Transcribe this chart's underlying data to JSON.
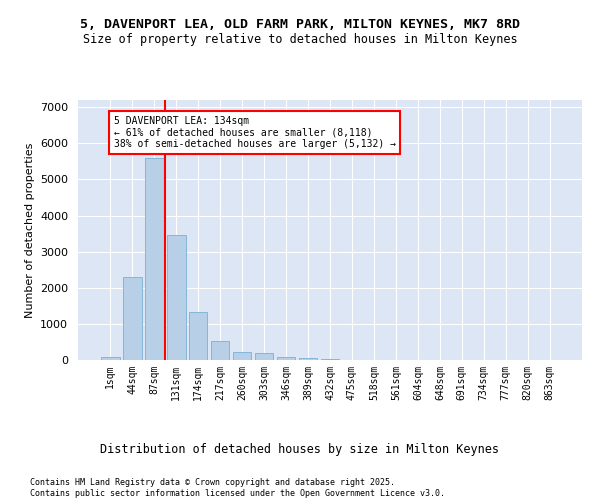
{
  "title_line1": "5, DAVENPORT LEA, OLD FARM PARK, MILTON KEYNES, MK7 8RD",
  "title_line2": "Size of property relative to detached houses in Milton Keynes",
  "xlabel": "Distribution of detached houses by size in Milton Keynes",
  "ylabel": "Number of detached properties",
  "bar_labels": [
    "1sqm",
    "44sqm",
    "87sqm",
    "131sqm",
    "174sqm",
    "217sqm",
    "260sqm",
    "303sqm",
    "346sqm",
    "389sqm",
    "432sqm",
    "475sqm",
    "518sqm",
    "561sqm",
    "604sqm",
    "648sqm",
    "691sqm",
    "734sqm",
    "777sqm",
    "820sqm",
    "863sqm"
  ],
  "bar_values": [
    80,
    2300,
    5600,
    3450,
    1320,
    530,
    220,
    185,
    95,
    65,
    35,
    10,
    5,
    3,
    2,
    1,
    1,
    0,
    0,
    0,
    0
  ],
  "bar_color": "#b8cfe8",
  "bar_edge_color": "#7aafd4",
  "vline_color": "red",
  "annotation_title": "5 DAVENPORT LEA: 134sqm",
  "annotation_line1": "← 61% of detached houses are smaller (8,118)",
  "annotation_line2": "38% of semi-detached houses are larger (5,132) →",
  "ylim": [
    0,
    7200
  ],
  "yticks": [
    0,
    1000,
    2000,
    3000,
    4000,
    5000,
    6000,
    7000
  ],
  "bg_color": "#dce6f5",
  "footer_line1": "Contains HM Land Registry data © Crown copyright and database right 2025.",
  "footer_line2": "Contains public sector information licensed under the Open Government Licence v3.0."
}
